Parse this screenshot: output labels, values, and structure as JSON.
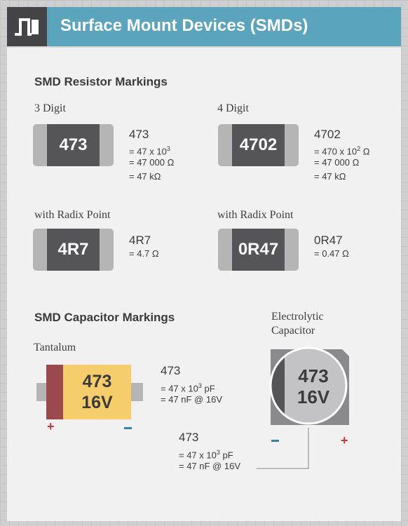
{
  "header": {
    "title": "Surface Mount Devices (SMDs)",
    "logo_icon": "circuit-s-icon"
  },
  "colors": {
    "header": "#5aa5bd",
    "logo_bg": "#444446",
    "body_dark": "#555557",
    "cap_gray": "#b5b5b5",
    "tantalum": "#f5ce6b",
    "tantalum_band": "#9a4a4a",
    "plus": "#c9343a",
    "minus": "#2e86a8"
  },
  "resistors": {
    "title": "SMD Resistor Markings",
    "three_digit": {
      "label": "3 Digit",
      "code": "473",
      "lines": {
        "l1_a": "= 47 x 10",
        "l1_sup": "3",
        "l2": "= 47 000 Ω",
        "l3": "= 47 kΩ"
      }
    },
    "four_digit": {
      "label": "4 Digit",
      "code": "4702",
      "lines": {
        "l1_a": "= 470 x 10",
        "l1_sup": "2",
        "l1_b": " Ω",
        "l2": "= 47 000 Ω",
        "l3": "= 47 kΩ"
      }
    },
    "radix_a": {
      "label": "with Radix Point",
      "code": "4R7",
      "line": "= 4.7 Ω"
    },
    "radix_b": {
      "label": "with Radix Point",
      "code": "0R47",
      "line": "= 0.47 Ω"
    }
  },
  "capacitors": {
    "title": "SMD Capacitor Markings",
    "tantalum": {
      "label": "Tantalum",
      "code_top": "473",
      "code_bottom": "16V",
      "code": "473",
      "lines": {
        "l1_a": "= 47 x 10",
        "l1_sup": "3",
        "l1_b": " pF",
        "l2": "= 47 nF @ 16V"
      },
      "plus": "+",
      "minus": "−"
    },
    "electrolytic": {
      "label_line1": "Electrolytic",
      "label_line2": "Capacitor",
      "code_top": "473",
      "code_bottom": "16V",
      "code": "473",
      "lines": {
        "l1_a": "= 47 x 10",
        "l1_sup": "3",
        "l1_b": " pF",
        "l2": "= 47 nF @ 16V"
      },
      "plus": "+",
      "minus": "−"
    }
  }
}
